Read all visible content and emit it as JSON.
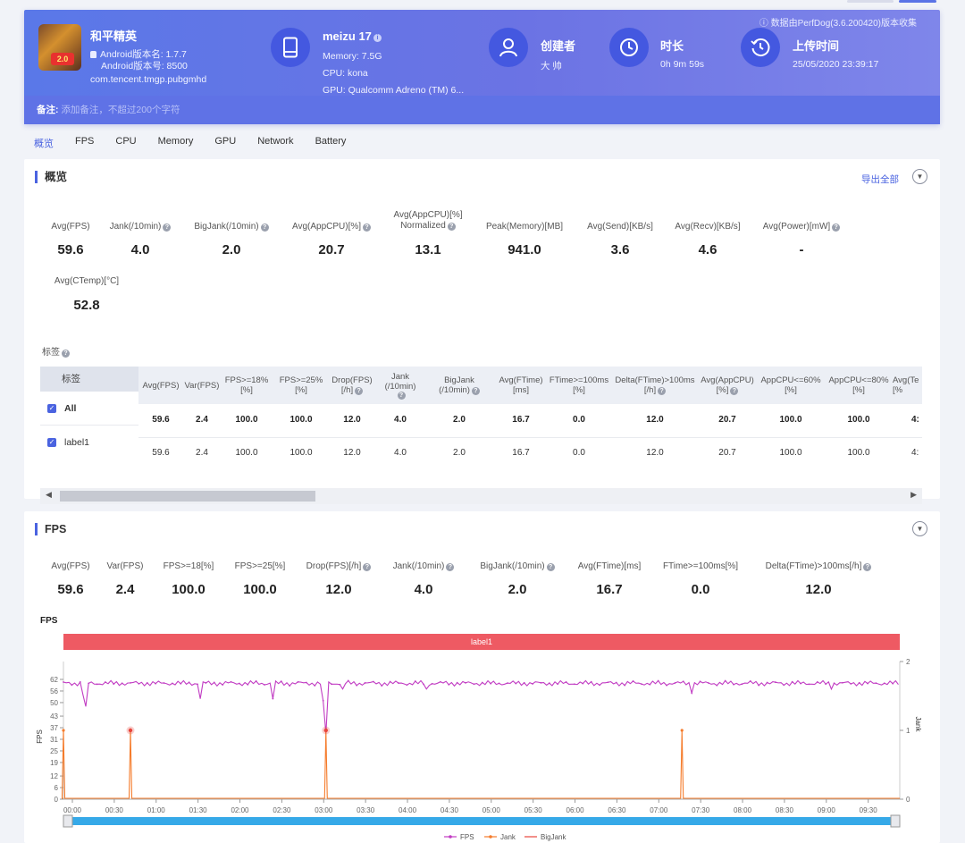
{
  "header": {
    "notice": "数据由PerfDog(3.6.200420)版本收集",
    "app_name": "和平精英",
    "android_version_name": "Android版本名: 1.7.7",
    "android_version_code": "Android版本号: 8500",
    "package": "com.tencent.tmgp.pubgmhd",
    "device": {
      "name": "meizu 17",
      "memory": "Memory: 7.5G",
      "cpu": "CPU: kona",
      "gpu": "GPU: Qualcomm Adreno (TM) 6..."
    },
    "creator": {
      "title": "创建者",
      "value": "大 帅"
    },
    "duration": {
      "title": "时长",
      "value": "0h 9m 59s"
    },
    "upload": {
      "title": "上传时间",
      "value": "25/05/2020 23:39:17"
    },
    "remark": {
      "label": "备注:",
      "placeholder": "添加备注，不超过200个字符"
    }
  },
  "nav": [
    "概览",
    "FPS",
    "CPU",
    "Memory",
    "GPU",
    "Network",
    "Battery"
  ],
  "overview": {
    "title": "概览",
    "export": "导出全部",
    "metrics": [
      {
        "label": "Avg(FPS)",
        "value": "59.6"
      },
      {
        "label": "Jank(/10min)",
        "value": "4.0"
      },
      {
        "label": "BigJank(/10min)",
        "value": "2.0"
      },
      {
        "label": "Avg(AppCPU)[%]",
        "value": "20.7"
      },
      {
        "label": "Avg(AppCPU)[%]",
        "label2": "Normalized",
        "value": "13.1"
      },
      {
        "label": "Peak(Memory)[MB]",
        "value": "941.0"
      },
      {
        "label": "Avg(Send)[KB/s]",
        "value": "3.6"
      },
      {
        "label": "Avg(Recv)[KB/s]",
        "value": "4.6"
      },
      {
        "label": "Avg(Power)[mW]",
        "value": "-"
      },
      {
        "label": "Avg(CTemp)[°C]",
        "value": "52.8"
      }
    ],
    "tags_title": "标签",
    "table": {
      "left_header": "标签",
      "headers": [
        [
          "Avg(FPS)"
        ],
        [
          "Var(FPS)"
        ],
        [
          "FPS>=18%",
          "[%]"
        ],
        [
          "FPS>=25%",
          "[%]"
        ],
        [
          "Drop(FPS)",
          "[/h]"
        ],
        [
          "Jank",
          "(/10min)",
          ""
        ],
        [
          "BigJank",
          "(/10min)"
        ],
        [
          "Avg(FTime)",
          "[ms]"
        ],
        [
          "FTime>=100ms",
          "[%]"
        ],
        [
          "Delta(FTime)>100ms",
          "[/h]"
        ],
        [
          "Avg(AppCPU)",
          "[%]"
        ],
        [
          "AppCPU<=60%",
          "[%]"
        ],
        [
          "AppCPU<=80%",
          "[%]"
        ],
        [
          "Avg(Te",
          "[%"
        ]
      ],
      "rows": [
        {
          "label": "All",
          "values": [
            "59.6",
            "2.4",
            "100.0",
            "100.0",
            "12.0",
            "4.0",
            "2.0",
            "16.7",
            "0.0",
            "12.0",
            "20.7",
            "100.0",
            "100.0",
            "4:"
          ]
        },
        {
          "label": "label1",
          "values": [
            "59.6",
            "2.4",
            "100.0",
            "100.0",
            "12.0",
            "4.0",
            "2.0",
            "16.7",
            "0.0",
            "12.0",
            "20.7",
            "100.0",
            "100.0",
            "4:"
          ]
        }
      ]
    }
  },
  "fps_section": {
    "title": "FPS",
    "metrics": [
      {
        "label": "Avg(FPS)",
        "value": "59.6"
      },
      {
        "label": "Var(FPS)",
        "value": "2.4"
      },
      {
        "label": "FPS>=18[%]",
        "value": "100.0"
      },
      {
        "label": "FPS>=25[%]",
        "value": "100.0"
      },
      {
        "label": "Drop(FPS)[/h]",
        "value": "12.0"
      },
      {
        "label": "Jank(/10min)",
        "value": "4.0"
      },
      {
        "label": "BigJank(/10min)",
        "value": "2.0"
      },
      {
        "label": "Avg(FTime)[ms]",
        "value": "16.7"
      },
      {
        "label": "FTime>=100ms[%]",
        "value": "0.0"
      },
      {
        "label": "Delta(FTime)>100ms[/h]",
        "value": "12.0"
      }
    ]
  },
  "chart_data": {
    "type": "line",
    "title": "FPS",
    "label_band": "label1",
    "ylabel": "FPS",
    "ylabel_right": "Jank",
    "y_ticks": [
      0,
      6,
      12,
      19,
      25,
      31,
      37,
      43,
      50,
      56,
      62
    ],
    "y_right_ticks": [
      0,
      1,
      2
    ],
    "ylim": [
      0,
      62
    ],
    "y_right_lim": [
      0,
      2
    ],
    "x_ticks": [
      "00:00",
      "00:30",
      "01:00",
      "01:30",
      "02:00",
      "02:30",
      "03:00",
      "03:30",
      "04:00",
      "04:30",
      "05:00",
      "05:30",
      "06:00",
      "06:30",
      "07:00",
      "07:30",
      "08:00",
      "08:30",
      "09:00",
      "09:30"
    ],
    "x_range_seconds": [
      0,
      599
    ],
    "fps_baseline": 60,
    "fps_dips": [
      {
        "t": 15,
        "fps": 54
      },
      {
        "t": 16,
        "fps": 48
      },
      {
        "t": 98,
        "fps": 52
      },
      {
        "t": 150,
        "fps": 52
      },
      {
        "t": 187,
        "fps": 51
      },
      {
        "t": 189,
        "fps": 34
      },
      {
        "t": 200,
        "fps": 57
      },
      {
        "t": 260,
        "fps": 57
      },
      {
        "t": 450,
        "fps": 55
      },
      {
        "t": 551,
        "fps": 57
      }
    ],
    "series": [
      {
        "name": "FPS",
        "color": "#c13cc3"
      },
      {
        "name": "Jank",
        "color": "#f57c2c",
        "spikes_seconds": [
          0,
          48,
          188,
          443
        ],
        "value": 1
      },
      {
        "name": "BigJank",
        "color": "#e8453c",
        "spikes_seconds": [
          48,
          188
        ]
      }
    ],
    "legend": [
      "FPS",
      "Jank",
      "BigJank"
    ]
  }
}
